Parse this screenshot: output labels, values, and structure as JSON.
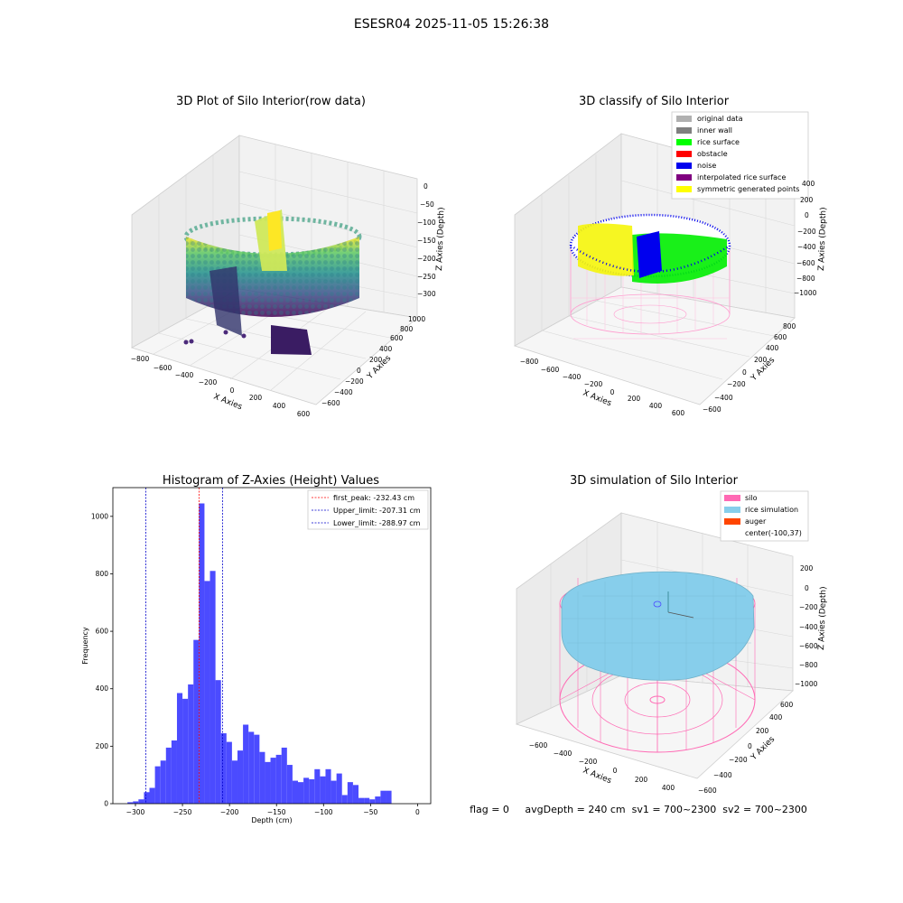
{
  "figure": {
    "suptitle": "ESESR04 2025-11-05 15:26:38",
    "status_line": "flag = 0     avgDepth = 240 cm  sv1 = 700~2300  sv2 = 700~2300"
  },
  "colors": {
    "hist_bar": "#4b4bff",
    "peak_line": "#ff0000",
    "limit_line": "#0000cc",
    "silo": "#ff69b4",
    "rice_sim": "#87ceeb",
    "auger": "#ff4500",
    "viridis_low": "#440154",
    "viridis_mid": "#21918c",
    "viridis_high": "#fde725"
  },
  "panels": {
    "raw": {
      "title": "3D Plot of Silo Interior(row data)",
      "xlabel": "X Axies",
      "ylabel": "Y Axies",
      "zlabel": "Z Axies (Depth)",
      "xticks": [
        "−800",
        "−600",
        "−400",
        "−200",
        "0",
        "200",
        "400",
        "600"
      ],
      "yticks": [
        "−600",
        "−400",
        "−200",
        "0",
        "200",
        "400",
        "600",
        "800",
        "1000"
      ],
      "zticks": [
        "0",
        "−50",
        "−100",
        "−150",
        "−200",
        "−250",
        "−300"
      ]
    },
    "classify": {
      "title": "3D classify of Silo Interior",
      "xlabel": "X Axies",
      "ylabel": "Y Axies",
      "zlabel": "Z Axies (Depth)",
      "xticks": [
        "−800",
        "−600",
        "−400",
        "−200",
        "0",
        "200",
        "400",
        "600"
      ],
      "yticks": [
        "−600",
        "−400",
        "−200",
        "0",
        "200",
        "400",
        "600",
        "800"
      ],
      "zticks": [
        "400",
        "200",
        "0",
        "−200",
        "−400",
        "−600",
        "−800",
        "−1000"
      ],
      "legend": [
        {
          "label": "original data",
          "color": "#b0b0b0"
        },
        {
          "label": "inner wall",
          "color": "#808080"
        },
        {
          "label": "rice surface",
          "color": "#00ff00"
        },
        {
          "label": "obstacle",
          "color": "#ff0000"
        },
        {
          "label": "noise",
          "color": "#0000ee"
        },
        {
          "label": "interpolated rice surface",
          "color": "#800080"
        },
        {
          "label": "symmetric generated points",
          "color": "#ffff00"
        }
      ]
    },
    "simulation": {
      "title": "3D simulation of Silo Interior",
      "xlabel": "X Axies",
      "ylabel": "Y Axies",
      "zlabel": "Z Axies (Depth)",
      "xticks": [
        "−600",
        "−400",
        "−200",
        "0",
        "200",
        "400"
      ],
      "yticks": [
        "−600",
        "−400",
        "−200",
        "0",
        "200",
        "400",
        "600"
      ],
      "zticks": [
        "200",
        "0",
        "−200",
        "−400",
        "−600",
        "−800",
        "−1000"
      ],
      "legend": [
        {
          "label": "silo",
          "color": "#ff69b4"
        },
        {
          "label": "rice simulation",
          "color": "#87ceeb"
        },
        {
          "label": "auger",
          "color": "#ff4500"
        },
        {
          "label": "center(-100,37)",
          "color": null
        }
      ]
    }
  },
  "chart_data": {
    "type": "bar",
    "title": "Histogram of Z-Axies (Height) Values",
    "xlabel": "Depth (cm)",
    "ylabel": "Frequency",
    "xlim": [
      -324,
      14
    ],
    "ylim": [
      0,
      1100
    ],
    "xticks": [
      -300,
      -250,
      -200,
      -150,
      -100,
      -50,
      0
    ],
    "xtick_labels": [
      "−300",
      "−250",
      "−200",
      "−150",
      "−100",
      "−50",
      "0"
    ],
    "yticks": [
      0,
      200,
      400,
      600,
      800,
      1000
    ],
    "ytick_labels": [
      "0",
      "200",
      "400",
      "600",
      "800",
      "1000"
    ],
    "bin_width": 5.85,
    "bins_start": -308.5,
    "values": [
      5,
      8,
      15,
      40,
      55,
      130,
      150,
      195,
      220,
      385,
      365,
      415,
      570,
      1045,
      775,
      810,
      430,
      245,
      215,
      150,
      185,
      275,
      250,
      240,
      180,
      145,
      160,
      170,
      195,
      135,
      80,
      75,
      90,
      85,
      120,
      95,
      120,
      80,
      105,
      30,
      75,
      65,
      20,
      20,
      15,
      25,
      45,
      45
    ],
    "vlines": [
      {
        "x": -232.43,
        "label": "first_peak: -232.43 cm",
        "color": "#ff0000"
      },
      {
        "x": -207.31,
        "label": "Upper_limit: -207.31 cm",
        "color": "#0000cc"
      },
      {
        "x": -288.97,
        "label": "Lower_limit: -288.97 cm",
        "color": "#0000cc"
      }
    ],
    "legend_position": "upper right",
    "grid": false
  }
}
